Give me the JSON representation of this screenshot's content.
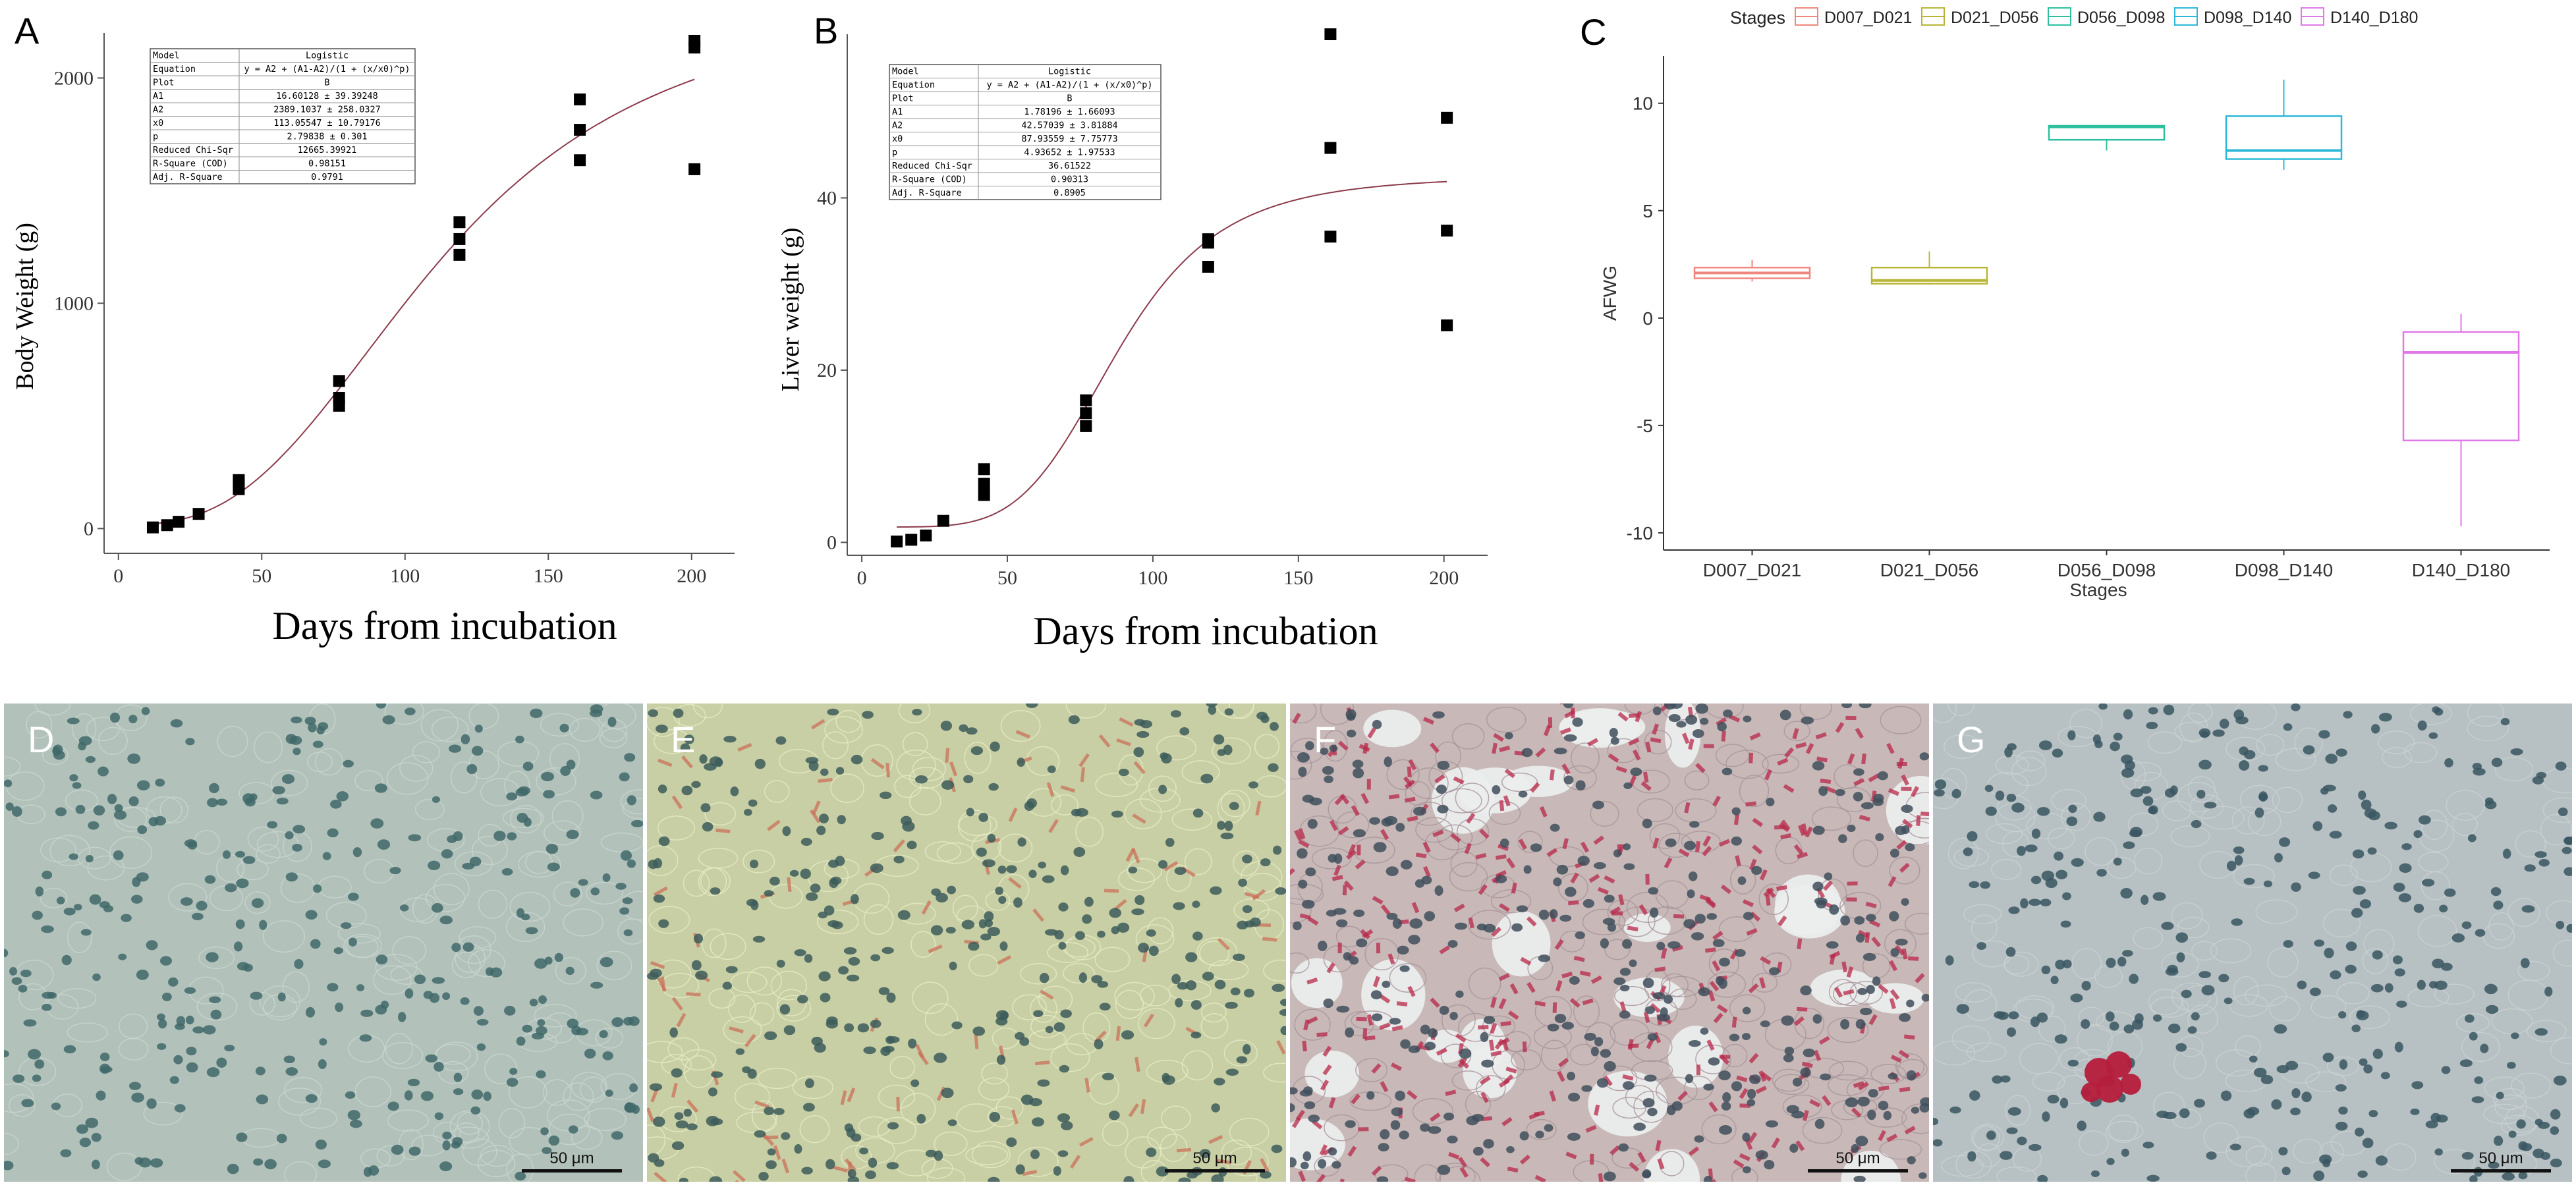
{
  "panels": {
    "A": {
      "label": "A",
      "xlabel": "Days from incubation",
      "ylabel": "Body Weight (g)",
      "xticks": [
        "0",
        "50",
        "100",
        "150",
        "200"
      ],
      "yticks": [
        "0",
        "1000",
        "2000"
      ],
      "stats_table": [
        [
          "Model",
          "Logistic"
        ],
        [
          "Equation",
          "y = A2 + (A1-A2)/(1 + (x/x0)^p)"
        ],
        [
          "Plot",
          "B"
        ],
        [
          "A1",
          "16.60128 ± 39.39248"
        ],
        [
          "A2",
          "2389.1037 ± 258.0327"
        ],
        [
          "x0",
          "113.05547 ± 10.79176"
        ],
        [
          "p",
          "2.79838 ± 0.301"
        ],
        [
          "Reduced Chi-Sqr",
          "12665.39921"
        ],
        [
          "R-Square (COD)",
          "0.98151"
        ],
        [
          "Adj. R-Square",
          "0.9791"
        ]
      ]
    },
    "B": {
      "label": "B",
      "xlabel": "Days from incubation",
      "ylabel": "Liver weight (g)",
      "xticks": [
        "0",
        "50",
        "100",
        "150",
        "200"
      ],
      "yticks": [
        "0",
        "20",
        "40"
      ],
      "stats_table": [
        [
          "Model",
          "Logistic"
        ],
        [
          "Equation",
          "y = A2 + (A1-A2)/(1 + (x/x0)^p)"
        ],
        [
          "Plot",
          "B"
        ],
        [
          "A1",
          "1.78196 ± 1.66093"
        ],
        [
          "A2",
          "42.57039 ± 3.81884"
        ],
        [
          "x0",
          "87.93559 ± 7.75773"
        ],
        [
          "p",
          "4.93652 ± 1.97533"
        ],
        [
          "Reduced Chi-Sqr",
          "36.61522"
        ],
        [
          "R-Square (COD)",
          "0.90313"
        ],
        [
          "Adj. R-Square",
          "0.8905"
        ]
      ]
    },
    "C": {
      "label": "C",
      "legend_title": "Stages",
      "xlabel": "Stages",
      "ylabel": "AFWG",
      "yticks": [
        "10",
        "5",
        "0",
        "-5",
        "-10"
      ]
    },
    "micrographs": [
      {
        "label": "D",
        "scale": "50 μm"
      },
      {
        "label": "E",
        "scale": "50 μm"
      },
      {
        "label": "F",
        "scale": "50 μm"
      },
      {
        "label": "G",
        "scale": "50 μm"
      }
    ]
  },
  "chart_data": [
    {
      "type": "scatter",
      "panel": "A",
      "xlabel": "Days from incubation",
      "ylabel": "Body Weight (g)",
      "xlim": [
        -5,
        215
      ],
      "ylim": [
        -110,
        2200
      ],
      "fit": {
        "model": "Logistic",
        "A1": 16.60128,
        "A2": 2389.1037,
        "x0": 113.05547,
        "p": 2.79838,
        "color": "#8b3a4a"
      },
      "points": [
        [
          12,
          5
        ],
        [
          17,
          15
        ],
        [
          21,
          30
        ],
        [
          28,
          65
        ],
        [
          42,
          175
        ],
        [
          42,
          200
        ],
        [
          42,
          215
        ],
        [
          77,
          545
        ],
        [
          77,
          580
        ],
        [
          77,
          655
        ],
        [
          119,
          1215
        ],
        [
          119,
          1285
        ],
        [
          119,
          1360
        ],
        [
          161,
          1635
        ],
        [
          161,
          1770
        ],
        [
          161,
          1905
        ],
        [
          201,
          1595
        ],
        [
          201,
          2135
        ],
        [
          201,
          2165
        ]
      ]
    },
    {
      "type": "scatter",
      "panel": "B",
      "xlabel": "Days from incubation",
      "ylabel": "Liver weight (g)",
      "xlim": [
        -5,
        215
      ],
      "ylim": [
        -1.5,
        59
      ],
      "fit": {
        "model": "Logistic",
        "A1": 1.78196,
        "A2": 42.57039,
        "x0": 87.93559,
        "p": 4.93652,
        "color": "#8b3a4a"
      },
      "points": [
        [
          12,
          0.1
        ],
        [
          17,
          0.3
        ],
        [
          22,
          0.8
        ],
        [
          28,
          2.5
        ],
        [
          42,
          5.5
        ],
        [
          42,
          6.8
        ],
        [
          42,
          8.5
        ],
        [
          77,
          13.5
        ],
        [
          77,
          15
        ],
        [
          77,
          16.5
        ],
        [
          119,
          32
        ],
        [
          119,
          34.8
        ],
        [
          119,
          35.2
        ],
        [
          161,
          35.5
        ],
        [
          161,
          45.8
        ],
        [
          161,
          59
        ],
        [
          201,
          25.2
        ],
        [
          201,
          36.2
        ],
        [
          201,
          49.3
        ]
      ]
    },
    {
      "type": "box",
      "panel": "C",
      "title": "",
      "xlabel": "Stages",
      "ylabel": "AFWG",
      "ylim": [
        -10.8,
        12.2
      ],
      "legend": {
        "title": "Stages",
        "placement": "top"
      },
      "categories": [
        "D007_D021",
        "D021_D056",
        "D056_D098",
        "D098_D140",
        "D140_D180"
      ],
      "series": [
        {
          "name": "D007_D021",
          "color": "#f0877e",
          "min": 1.7,
          "q1": 1.85,
          "median": 2.1,
          "q3": 2.35,
          "max": 2.7
        },
        {
          "name": "D021_D056",
          "color": "#b8b636",
          "min": 1.55,
          "q1": 1.6,
          "median": 1.75,
          "q3": 2.35,
          "max": 3.1
        },
        {
          "name": "D056_D098",
          "color": "#2dbf9e",
          "min": 7.8,
          "q1": 8.3,
          "median": 8.9,
          "q3": 8.95,
          "max": 8.95
        },
        {
          "name": "D098_D140",
          "color": "#2db8d8",
          "min": 6.9,
          "q1": 7.4,
          "median": 7.8,
          "q3": 9.4,
          "max": 11.1
        },
        {
          "name": "D140_D180",
          "color": "#e078e8",
          "min": -9.7,
          "q1": -5.7,
          "median": -1.6,
          "q3": -0.65,
          "max": 0.2
        }
      ]
    }
  ]
}
